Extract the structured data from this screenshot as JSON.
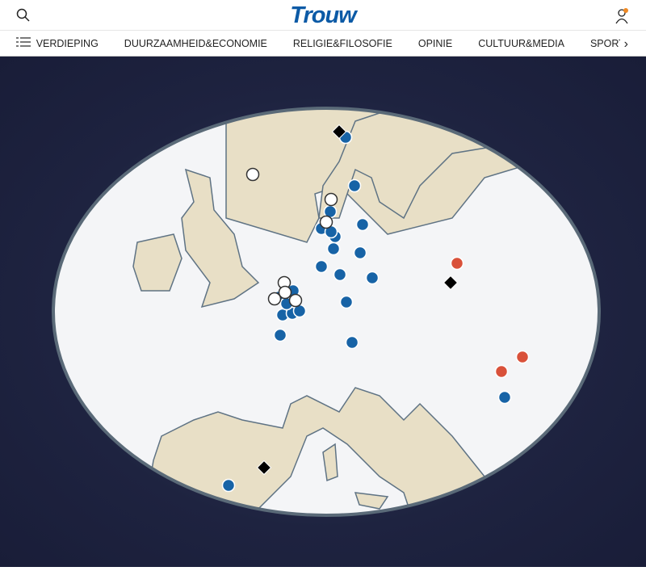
{
  "header": {
    "logo": "Trouw",
    "search_icon": "search-icon",
    "user_icon": "user-icon",
    "notification_color": "#f08a24"
  },
  "nav": {
    "items": [
      "VERDIEPING",
      "DUURZAAMHEID&ECONOMIE",
      "RELIGIE&FILOSOFIE",
      "OPINIE",
      "CULTUUR&MEDIA",
      "SPORT&S..."
    ]
  },
  "map": {
    "land_color": "#e8dfc6",
    "sea_color": "#f4f5f7",
    "border_color": "#5f7384",
    "marker_colors": {
      "blue": "#1763a6",
      "white": "#ffffff",
      "red": "#d9513a",
      "diamond": "#000000"
    },
    "marker_counts": {
      "blue": 23,
      "white": 7,
      "red": 3,
      "diamond": 3
    }
  }
}
